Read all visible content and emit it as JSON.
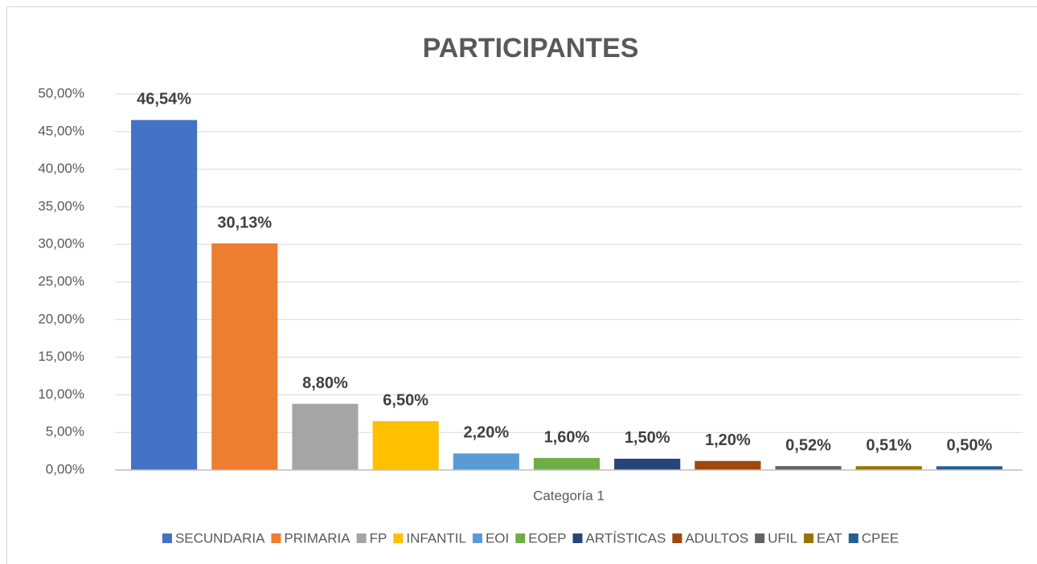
{
  "chart_data": {
    "type": "bar",
    "title": "PARTICIPANTES",
    "categories": [
      "Categoría 1"
    ],
    "series": [
      {
        "name": "SECUNDARIA",
        "color": "#4472c4",
        "values": [
          46.54
        ],
        "value_labels": [
          "46,54%"
        ]
      },
      {
        "name": "PRIMARIA",
        "color": "#ed7d31",
        "values": [
          30.13
        ],
        "value_labels": [
          "30,13%"
        ]
      },
      {
        "name": "FP",
        "color": "#a5a5a5",
        "values": [
          8.8
        ],
        "value_labels": [
          "8,80%"
        ]
      },
      {
        "name": "INFANTIL",
        "color": "#ffc000",
        "values": [
          6.5
        ],
        "value_labels": [
          "6,50%"
        ]
      },
      {
        "name": "EOI",
        "color": "#5b9bd5",
        "values": [
          2.2
        ],
        "value_labels": [
          "2,20%"
        ]
      },
      {
        "name": "EOEP",
        "color": "#70ad47",
        "values": [
          1.6
        ],
        "value_labels": [
          "1,60%"
        ]
      },
      {
        "name": "ARTÍSTICAS",
        "color": "#264478",
        "values": [
          1.5
        ],
        "value_labels": [
          "1,50%"
        ]
      },
      {
        "name": "ADULTOS",
        "color": "#9e480e",
        "values": [
          1.2
        ],
        "value_labels": [
          "1,20%"
        ]
      },
      {
        "name": "UFIL",
        "color": "#636363",
        "values": [
          0.52
        ],
        "value_labels": [
          "0,52%"
        ]
      },
      {
        "name": "EAT",
        "color": "#997300",
        "values": [
          0.51
        ],
        "value_labels": [
          "0,51%"
        ]
      },
      {
        "name": "CPEE",
        "color": "#255e91",
        "values": [
          0.5
        ],
        "value_labels": [
          "0,50%"
        ]
      }
    ],
    "ylim": [
      0,
      50
    ],
    "yticks": [
      {
        "value": 0,
        "label": "0,00%"
      },
      {
        "value": 5,
        "label": "5,00%"
      },
      {
        "value": 10,
        "label": "10,00%"
      },
      {
        "value": 15,
        "label": "15,00%"
      },
      {
        "value": 20,
        "label": "20,00%"
      },
      {
        "value": 25,
        "label": "25,00%"
      },
      {
        "value": 30,
        "label": "30,00%"
      },
      {
        "value": 35,
        "label": "35,00%"
      },
      {
        "value": 40,
        "label": "40,00%"
      },
      {
        "value": 45,
        "label": "45,00%"
      },
      {
        "value": 50,
        "label": "50,00%"
      }
    ],
    "grid": true,
    "legend": "bottom"
  }
}
